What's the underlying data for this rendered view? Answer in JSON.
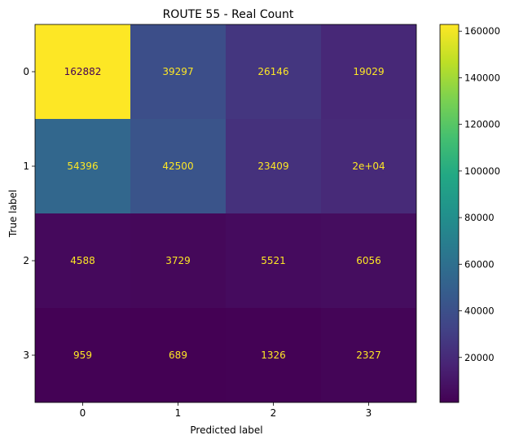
{
  "chart_data": {
    "type": "heatmap",
    "title": "ROUTE 55  - Real Count",
    "xlabel": "Predicted label",
    "ylabel": "True label",
    "x_categories": [
      "0",
      "1",
      "2",
      "3"
    ],
    "y_categories": [
      "0",
      "1",
      "2",
      "3"
    ],
    "values": [
      [
        162882,
        39297,
        26146,
        19029
      ],
      [
        54396,
        42500,
        23409,
        20000
      ],
      [
        4588,
        3729,
        5521,
        6056
      ],
      [
        959,
        689,
        1326,
        2327
      ]
    ],
    "cell_labels": [
      [
        "162882",
        "39297",
        "26146",
        "19029"
      ],
      [
        "54396",
        "42500",
        "23409",
        "2e+04"
      ],
      [
        "4588",
        "3729",
        "5521",
        "6056"
      ],
      [
        "959",
        "689",
        "1326",
        "2327"
      ]
    ],
    "colormap": "viridis",
    "color_range": [
      689,
      162882
    ],
    "colorbar_ticks": [
      20000,
      40000,
      60000,
      80000,
      100000,
      120000,
      140000,
      160000
    ],
    "colorbar_tick_labels": [
      "20000",
      "40000",
      "60000",
      "80000",
      "100000",
      "120000",
      "140000",
      "160000"
    ],
    "grid": false,
    "colors": {
      "text_on_dark": "#fde725",
      "text_on_light": "#440154"
    }
  }
}
